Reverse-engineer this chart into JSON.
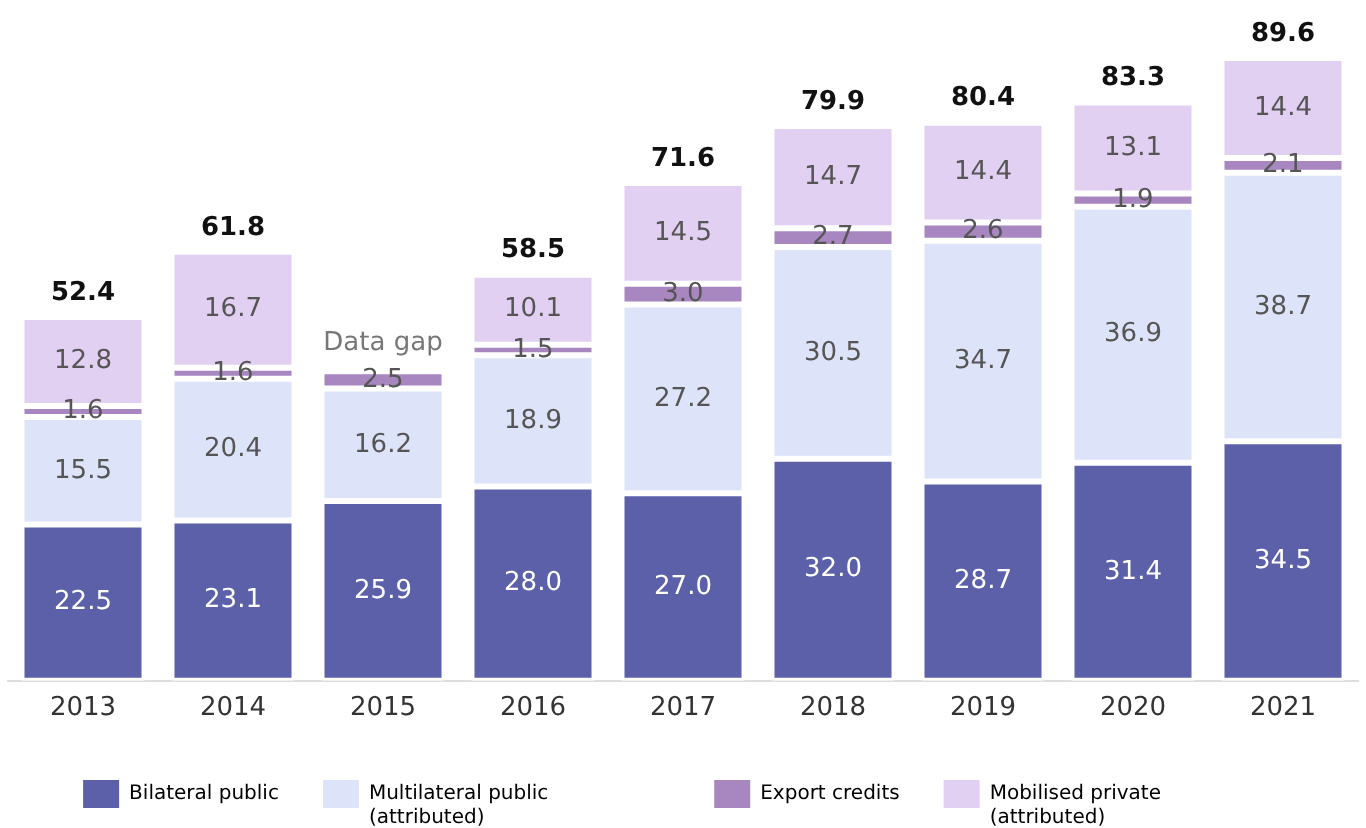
{
  "chart_data": {
    "type": "bar",
    "stacked": true,
    "categories": [
      "2013",
      "2014",
      "2015",
      "2016",
      "2017",
      "2018",
      "2019",
      "2020",
      "2021"
    ],
    "series": [
      {
        "name": "Bilateral public",
        "color": "#5b60a8",
        "values": [
          22.5,
          23.1,
          25.9,
          28.0,
          27.0,
          32.0,
          28.7,
          31.4,
          34.5
        ],
        "value_labels": [
          "22.5",
          "23.1",
          "25.9",
          "28.0",
          "27.0",
          "32.0",
          "28.7",
          "31.4",
          "34.5"
        ]
      },
      {
        "name": "Multilateral public (attributed)",
        "color": "#dde3f8",
        "values": [
          15.5,
          20.4,
          16.2,
          18.9,
          27.2,
          30.5,
          34.7,
          36.9,
          38.7
        ],
        "value_labels": [
          "15.5",
          "20.4",
          "16.2",
          "18.9",
          "27.2",
          "30.5",
          "34.7",
          "36.9",
          "38.7"
        ]
      },
      {
        "name": "Export credits",
        "color": "#a886c0",
        "values": [
          1.6,
          1.6,
          2.5,
          1.5,
          3.0,
          2.7,
          2.6,
          1.9,
          2.1
        ],
        "value_labels": [
          "1.6",
          "1.6",
          "2.5",
          "1.5",
          "3.0",
          "2.7",
          "2.6",
          "1.9",
          "2.1"
        ]
      },
      {
        "name": "Mobilised private (attributed)",
        "color": "#e2d0f3",
        "values": [
          12.8,
          16.7,
          null,
          10.1,
          14.5,
          14.7,
          14.4,
          13.1,
          14.4
        ],
        "value_labels": [
          "12.8",
          "16.7",
          null,
          "10.1",
          "14.5",
          "14.7",
          "14.4",
          "13.1",
          "14.4"
        ]
      }
    ],
    "totals": [
      "52.4",
      "61.8",
      null,
      "58.5",
      "71.6",
      "79.9",
      "80.4",
      "83.3",
      "89.6"
    ],
    "annotations": [
      "Data gap"
    ],
    "legend": "bottom",
    "grid": false
  }
}
